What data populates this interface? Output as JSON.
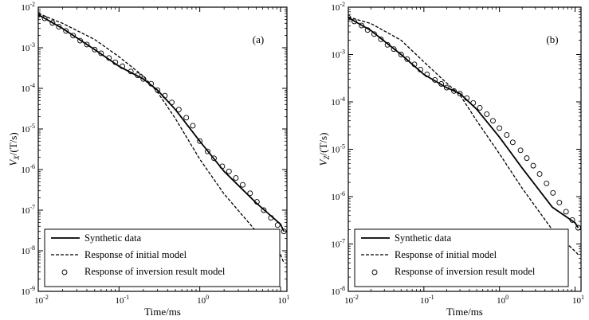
{
  "chart_data": [
    {
      "type": "line",
      "panel_label": "(a)",
      "xlabel": "Time/ms",
      "ylabel_main": "V",
      "ylabel_sub": "X",
      "ylabel_unit": "/(T/s)",
      "xscale": "log",
      "yscale": "log",
      "xlim": [
        0.01,
        12
      ],
      "ylim": [
        1e-09,
        0.01
      ],
      "x_ticks": [
        {
          "value": 0.01,
          "base": "10",
          "exp": "-2"
        },
        {
          "value": 0.1,
          "base": "10",
          "exp": "-1"
        },
        {
          "value": 1,
          "base": "10",
          "exp": "0"
        },
        {
          "value": 10,
          "base": "10",
          "exp": "1"
        }
      ],
      "y_ticks": [
        {
          "value": 1e-09,
          "base": "10",
          "exp": "-9"
        },
        {
          "value": 1e-08,
          "base": "10",
          "exp": "-8"
        },
        {
          "value": 1e-07,
          "base": "10",
          "exp": "-7"
        },
        {
          "value": 1e-06,
          "base": "10",
          "exp": "-6"
        },
        {
          "value": 1e-05,
          "base": "10",
          "exp": "-5"
        },
        {
          "value": 0.0001,
          "base": "10",
          "exp": "-4"
        },
        {
          "value": 0.001,
          "base": "10",
          "exp": "-3"
        },
        {
          "value": 0.01,
          "base": "10",
          "exp": "-2"
        }
      ],
      "legend_position": "bottom",
      "series": [
        {
          "name": "Synthetic data",
          "style": "solid",
          "x": [
            0.01,
            0.02,
            0.05,
            0.1,
            0.2,
            0.3,
            0.5,
            1,
            2,
            5,
            10,
            11
          ],
          "y": [
            0.0065,
            0.003,
            0.0009,
            0.00035,
            0.00017,
            9e-05,
            3e-05,
            5e-06,
            9e-07,
            1.5e-07,
            4.5e-08,
            3e-08
          ]
        },
        {
          "name": "Response of initial model",
          "style": "dashed",
          "x": [
            0.01,
            0.02,
            0.05,
            0.1,
            0.2,
            0.3,
            0.5,
            1,
            2,
            5,
            10,
            11
          ],
          "y": [
            0.007,
            0.004,
            0.0016,
            0.0006,
            0.0002,
            8e-05,
            1.8e-05,
            1.8e-06,
            2.5e-07,
            3e-08,
            8e-09,
            5e-09
          ]
        },
        {
          "name": "Response of inversion result model",
          "style": "circle",
          "x": [
            0.01,
            0.012,
            0.015,
            0.018,
            0.022,
            0.027,
            0.033,
            0.04,
            0.05,
            0.06,
            0.075,
            0.09,
            0.11,
            0.14,
            0.17,
            0.2,
            0.25,
            0.3,
            0.37,
            0.45,
            0.55,
            0.68,
            0.82,
            1.0,
            1.25,
            1.5,
            1.9,
            2.3,
            2.8,
            3.4,
            4.2,
            5.1,
            6.2,
            7.6,
            9.2,
            11
          ],
          "y": [
            0.0065,
            0.0053,
            0.0041,
            0.0033,
            0.0026,
            0.002,
            0.0015,
            0.0012,
            0.0009,
            0.00073,
            0.00056,
            0.00044,
            0.00035,
            0.00026,
            0.00021,
            0.00017,
            0.00013,
            9e-05,
            6.6e-05,
            4.5e-05,
            3e-05,
            1.9e-05,
            1.2e-05,
            5e-06,
            2.8e-06,
            1.9e-06,
            1.2e-06,
            9e-07,
            6.2e-07,
            4.2e-07,
            2.6e-07,
            1.6e-07,
            1e-07,
            6.5e-08,
            4.3e-08,
            3e-08
          ]
        }
      ]
    },
    {
      "type": "line",
      "panel_label": "(b)",
      "xlabel": "Time/ms",
      "ylabel_main": "V",
      "ylabel_sub": "Z",
      "ylabel_unit": "/(T/s)",
      "xscale": "log",
      "yscale": "log",
      "xlim": [
        0.01,
        12
      ],
      "ylim": [
        1e-08,
        0.01
      ],
      "x_ticks": [
        {
          "value": 0.01,
          "base": "10",
          "exp": "-2"
        },
        {
          "value": 0.1,
          "base": "10",
          "exp": "-1"
        },
        {
          "value": 1,
          "base": "10",
          "exp": "0"
        },
        {
          "value": 10,
          "base": "10",
          "exp": "1"
        }
      ],
      "y_ticks": [
        {
          "value": 1e-08,
          "base": "10",
          "exp": "-8"
        },
        {
          "value": 1e-07,
          "base": "10",
          "exp": "-7"
        },
        {
          "value": 1e-06,
          "base": "10",
          "exp": "-6"
        },
        {
          "value": 1e-05,
          "base": "10",
          "exp": "-5"
        },
        {
          "value": 0.0001,
          "base": "10",
          "exp": "-4"
        },
        {
          "value": 0.001,
          "base": "10",
          "exp": "-3"
        },
        {
          "value": 0.01,
          "base": "10",
          "exp": "-2"
        }
      ],
      "legend_position": "bottom",
      "series": [
        {
          "name": "Synthetic data",
          "style": "solid",
          "x": [
            0.01,
            0.02,
            0.05,
            0.1,
            0.2,
            0.3,
            0.5,
            1,
            2,
            5,
            10,
            11
          ],
          "y": [
            0.006,
            0.0032,
            0.001,
            0.00038,
            0.0002,
            0.00015,
            7e-05,
            1.8e-05,
            4e-06,
            6e-07,
            2.8e-07,
            2.2e-07
          ]
        },
        {
          "name": "Response of initial model",
          "style": "dashed",
          "x": [
            0.01,
            0.02,
            0.05,
            0.1,
            0.2,
            0.3,
            0.5,
            1,
            2,
            5,
            10,
            11
          ],
          "y": [
            0.0062,
            0.0045,
            0.002,
            0.0007,
            0.00025,
            0.00014,
            4e-05,
            8e-06,
            1.5e-06,
            2e-07,
            7e-08,
            6e-08
          ]
        },
        {
          "name": "Response of inversion result model",
          "style": "circle",
          "x": [
            0.01,
            0.012,
            0.015,
            0.018,
            0.022,
            0.027,
            0.033,
            0.04,
            0.05,
            0.06,
            0.075,
            0.09,
            0.11,
            0.14,
            0.17,
            0.2,
            0.25,
            0.3,
            0.37,
            0.45,
            0.55,
            0.68,
            0.82,
            1.0,
            1.25,
            1.5,
            1.9,
            2.3,
            2.8,
            3.4,
            4.2,
            5.1,
            6.2,
            7.6,
            9.2,
            11
          ],
          "y": [
            0.006,
            0.005,
            0.0041,
            0.0033,
            0.0027,
            0.0021,
            0.0016,
            0.0013,
            0.001,
            0.0008,
            0.00062,
            0.00048,
            0.00038,
            0.00029,
            0.00024,
            0.0002,
            0.00017,
            0.00015,
            0.00012,
            9.5e-05,
            7.5e-05,
            5.5e-05,
            4e-05,
            2.8e-05,
            2e-05,
            1.4e-05,
            9.5e-06,
            6.5e-06,
            4.5e-06,
            3e-06,
            1.9e-06,
            1.2e-06,
            7.5e-07,
            4.8e-07,
            3.2e-07,
            2.2e-07
          ]
        }
      ]
    }
  ]
}
